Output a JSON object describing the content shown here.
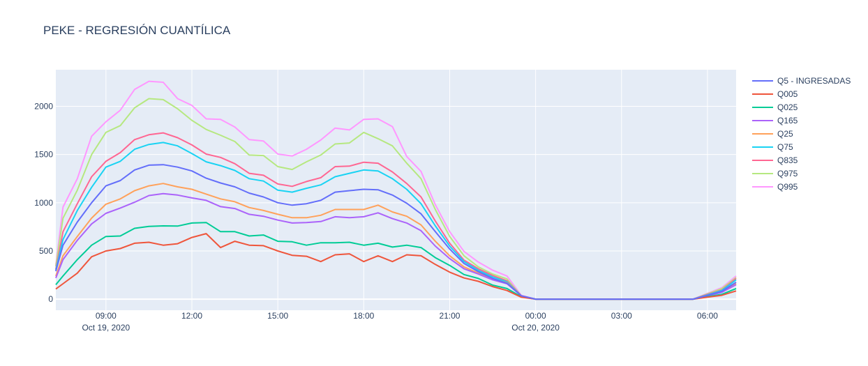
{
  "chart_data": {
    "type": "line",
    "title": "PEKE - REGRESIÓN CUANTÍLICA",
    "xlabel": "",
    "ylabel": "",
    "ylim": [
      -115,
      2380
    ],
    "xlim": [
      "2020-10-19 07:15",
      "2020-10-20 07:00"
    ],
    "grid": true,
    "legend_position": "right",
    "y_ticks": [
      "0",
      "500",
      "1000",
      "1500",
      "2000"
    ],
    "x_ticks": [
      {
        "at": "2020-10-19 09:00",
        "label": "09:00",
        "sub": "Oct 19, 2020"
      },
      {
        "at": "2020-10-19 12:00",
        "label": "12:00",
        "sub": ""
      },
      {
        "at": "2020-10-19 15:00",
        "label": "15:00",
        "sub": ""
      },
      {
        "at": "2020-10-19 18:00",
        "label": "18:00",
        "sub": ""
      },
      {
        "at": "2020-10-19 21:00",
        "label": "21:00",
        "sub": ""
      },
      {
        "at": "2020-10-20 00:00",
        "label": "00:00",
        "sub": "Oct 20, 2020"
      },
      {
        "at": "2020-10-20 03:00",
        "label": "03:00",
        "sub": ""
      },
      {
        "at": "2020-10-20 06:00",
        "label": "06:00",
        "sub": ""
      }
    ],
    "x": [
      "2020-10-19 07:15",
      "2020-10-19 07:30",
      "2020-10-19 08:00",
      "2020-10-19 08:30",
      "2020-10-19 09:00",
      "2020-10-19 09:30",
      "2020-10-19 10:00",
      "2020-10-19 10:30",
      "2020-10-19 11:00",
      "2020-10-19 11:30",
      "2020-10-19 12:00",
      "2020-10-19 12:30",
      "2020-10-19 13:00",
      "2020-10-19 13:30",
      "2020-10-19 14:00",
      "2020-10-19 14:30",
      "2020-10-19 15:00",
      "2020-10-19 15:30",
      "2020-10-19 16:00",
      "2020-10-19 16:30",
      "2020-10-19 17:00",
      "2020-10-19 17:30",
      "2020-10-19 18:00",
      "2020-10-19 18:30",
      "2020-10-19 19:00",
      "2020-10-19 19:30",
      "2020-10-19 20:00",
      "2020-10-19 20:30",
      "2020-10-19 21:00",
      "2020-10-19 21:30",
      "2020-10-19 22:00",
      "2020-10-19 22:30",
      "2020-10-19 23:00",
      "2020-10-19 23:30",
      "2020-10-20 00:00",
      "2020-10-20 00:30",
      "2020-10-20 01:00",
      "2020-10-20 01:30",
      "2020-10-20 02:00",
      "2020-10-20 02:30",
      "2020-10-20 03:00",
      "2020-10-20 03:30",
      "2020-10-20 04:00",
      "2020-10-20 04:30",
      "2020-10-20 05:00",
      "2020-10-20 05:30",
      "2020-10-20 06:00",
      "2020-10-20 06:30",
      "2020-10-20 07:00"
    ],
    "series": [
      {
        "name": "Q5 - INGRESADAS",
        "color": "#636efa",
        "values": [
          290,
          560,
          800,
          1000,
          1175,
          1230,
          1340,
          1390,
          1395,
          1370,
          1330,
          1255,
          1205,
          1165,
          1100,
          1060,
          1000,
          975,
          990,
          1025,
          1110,
          1125,
          1140,
          1135,
          1080,
          995,
          885,
          700,
          520,
          370,
          285,
          215,
          165,
          35,
          0,
          0,
          0,
          0,
          0,
          0,
          0,
          0,
          0,
          0,
          0,
          0,
          40,
          80,
          175
        ]
      },
      {
        "name": "Q005",
        "color": "#ef553b",
        "values": [
          105,
          160,
          270,
          440,
          500,
          525,
          580,
          590,
          560,
          575,
          640,
          680,
          535,
          600,
          560,
          555,
          500,
          455,
          445,
          390,
          460,
          470,
          390,
          450,
          390,
          460,
          450,
          360,
          280,
          220,
          185,
          130,
          90,
          20,
          0,
          0,
          0,
          0,
          0,
          0,
          0,
          0,
          0,
          0,
          0,
          0,
          20,
          40,
          85
        ]
      },
      {
        "name": "Q025",
        "color": "#00cc96",
        "values": [
          150,
          240,
          410,
          560,
          650,
          655,
          735,
          755,
          760,
          758,
          790,
          795,
          700,
          700,
          655,
          665,
          600,
          595,
          560,
          585,
          585,
          590,
          560,
          580,
          540,
          560,
          535,
          430,
          350,
          255,
          215,
          145,
          110,
          25,
          0,
          0,
          0,
          0,
          0,
          0,
          0,
          0,
          0,
          0,
          0,
          0,
          25,
          50,
          110
        ]
      },
      {
        "name": "Q165",
        "color": "#ab63fa",
        "values": [
          220,
          410,
          610,
          780,
          890,
          945,
          1005,
          1075,
          1095,
          1080,
          1050,
          1025,
          960,
          940,
          880,
          860,
          820,
          790,
          795,
          805,
          855,
          845,
          855,
          895,
          835,
          790,
          710,
          550,
          420,
          315,
          260,
          200,
          160,
          35,
          0,
          0,
          0,
          0,
          0,
          0,
          0,
          0,
          0,
          0,
          0,
          0,
          35,
          70,
          150
        ]
      },
      {
        "name": "Q25",
        "color": "#ffa15a",
        "values": [
          240,
          450,
          650,
          840,
          985,
          1040,
          1125,
          1175,
          1200,
          1165,
          1140,
          1090,
          1040,
          1010,
          950,
          920,
          880,
          845,
          845,
          870,
          930,
          930,
          930,
          975,
          905,
          860,
          770,
          600,
          450,
          335,
          270,
          210,
          170,
          35,
          0,
          0,
          0,
          0,
          0,
          0,
          0,
          0,
          0,
          0,
          0,
          0,
          40,
          75,
          160
        ]
      },
      {
        "name": "Q75",
        "color": "#19d3f3",
        "values": [
          300,
          620,
          920,
          1160,
          1370,
          1430,
          1555,
          1605,
          1625,
          1590,
          1510,
          1425,
          1385,
          1335,
          1250,
          1225,
          1130,
          1110,
          1150,
          1185,
          1270,
          1305,
          1340,
          1330,
          1250,
          1140,
          990,
          760,
          550,
          390,
          300,
          230,
          180,
          35,
          0,
          0,
          0,
          0,
          0,
          0,
          0,
          0,
          0,
          0,
          0,
          0,
          45,
          90,
          200
        ]
      },
      {
        "name": "Q835",
        "color": "#ff6692",
        "values": [
          310,
          700,
          990,
          1270,
          1430,
          1520,
          1655,
          1705,
          1725,
          1675,
          1600,
          1505,
          1470,
          1405,
          1305,
          1285,
          1195,
          1170,
          1220,
          1260,
          1375,
          1380,
          1420,
          1410,
          1320,
          1200,
          1060,
          810,
          580,
          405,
          315,
          245,
          190,
          35,
          0,
          0,
          0,
          0,
          0,
          0,
          0,
          0,
          0,
          0,
          0,
          0,
          50,
          95,
          215
        ]
      },
      {
        "name": "Q975",
        "color": "#b6e880",
        "values": [
          340,
          840,
          1130,
          1500,
          1730,
          1800,
          1985,
          2080,
          2070,
          1975,
          1855,
          1760,
          1700,
          1635,
          1495,
          1490,
          1375,
          1345,
          1425,
          1495,
          1610,
          1620,
          1730,
          1665,
          1590,
          1410,
          1250,
          930,
          650,
          450,
          335,
          260,
          210,
          35,
          0,
          0,
          0,
          0,
          0,
          0,
          0,
          0,
          0,
          0,
          0,
          0,
          55,
          110,
          225
        ]
      },
      {
        "name": "Q995",
        "color": "#ff97ff",
        "values": [
          355,
          955,
          1250,
          1690,
          1840,
          1960,
          2175,
          2260,
          2250,
          2080,
          2010,
          1870,
          1865,
          1785,
          1655,
          1640,
          1505,
          1485,
          1555,
          1650,
          1775,
          1755,
          1865,
          1870,
          1790,
          1480,
          1325,
          980,
          700,
          495,
          385,
          300,
          240,
          40,
          0,
          0,
          0,
          0,
          0,
          0,
          0,
          0,
          0,
          0,
          0,
          0,
          60,
          120,
          240
        ]
      }
    ]
  }
}
